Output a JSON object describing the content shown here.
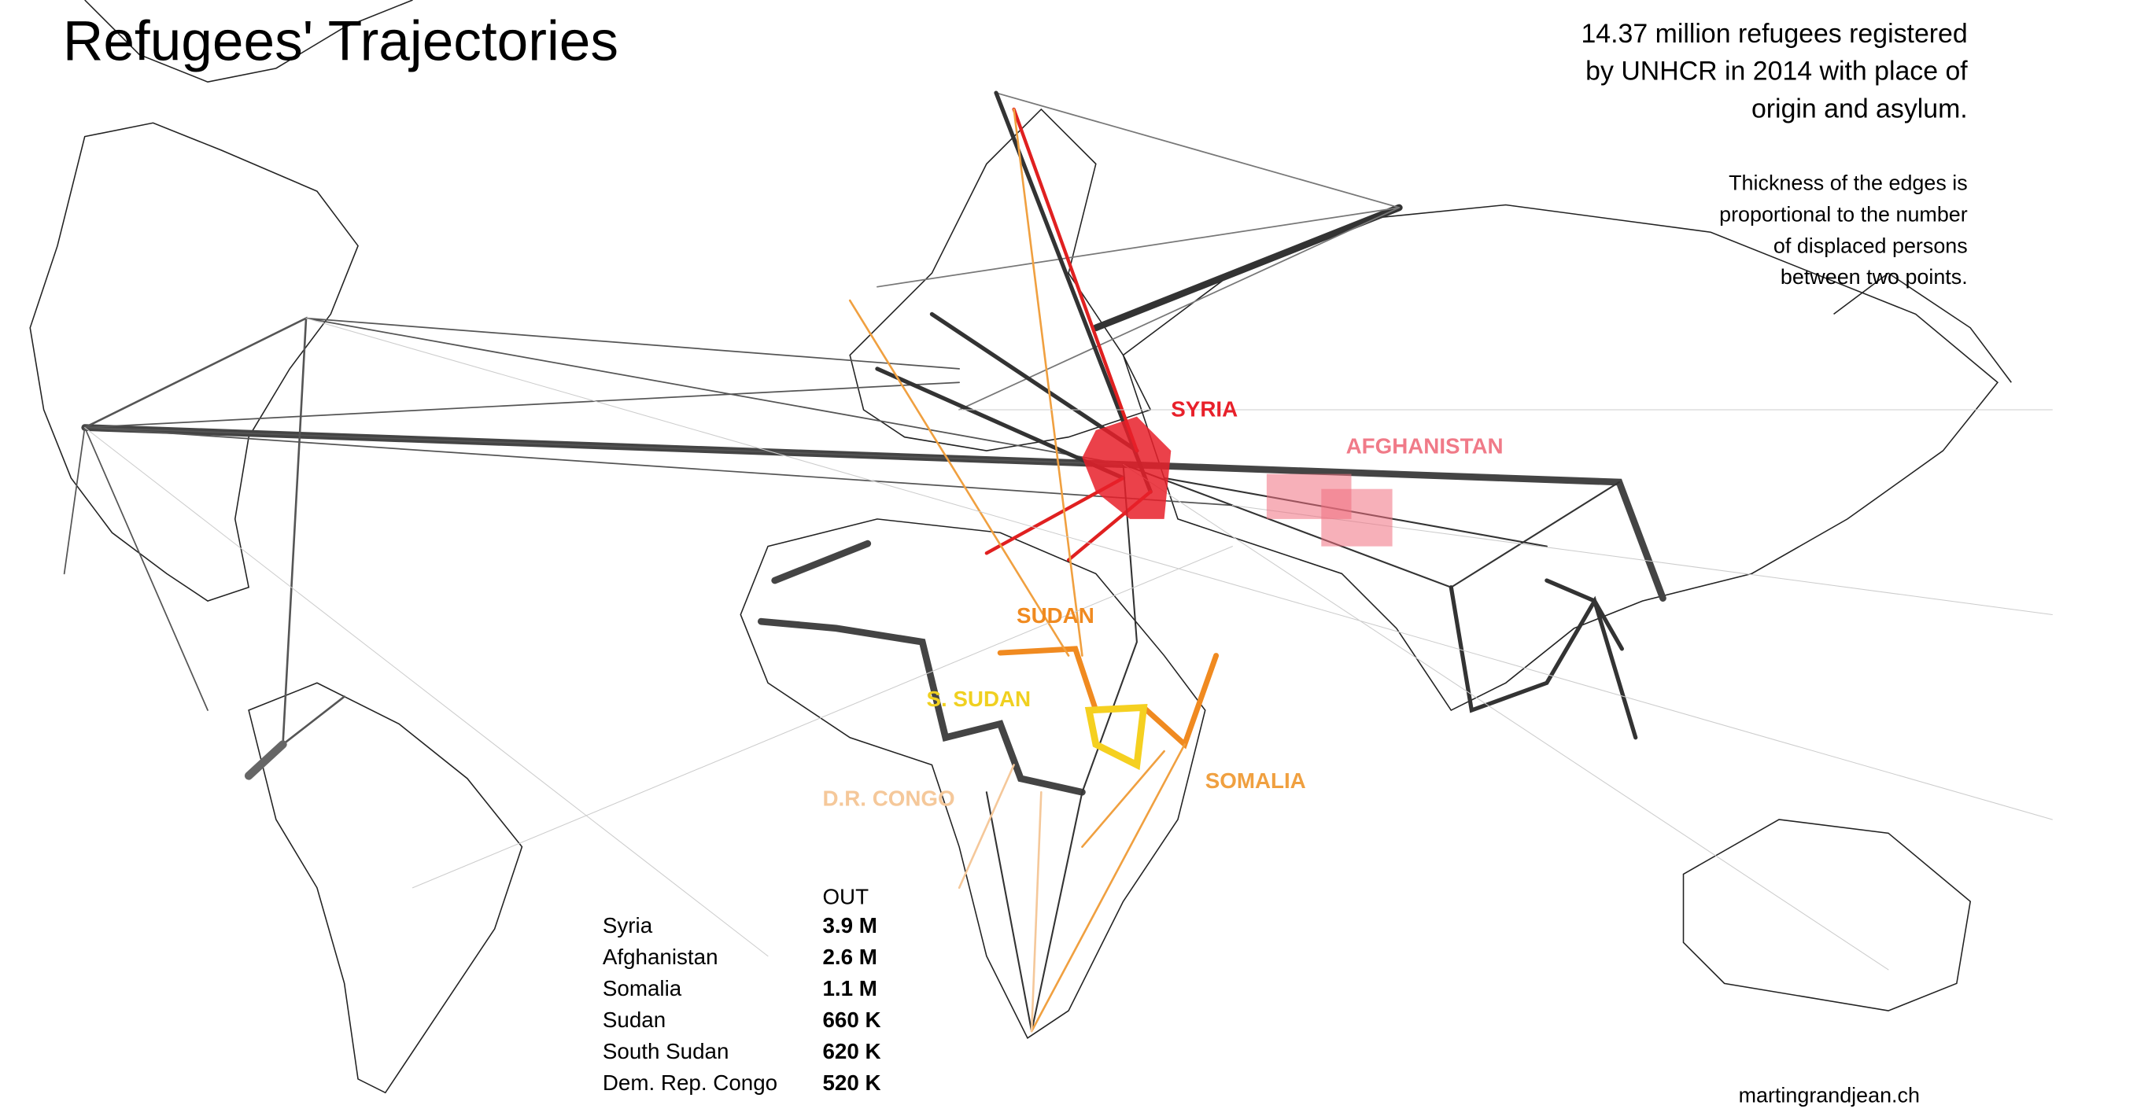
{
  "title": "Refugees' Trajectories",
  "description": [
    "14.37 million refugees registered",
    "by UNHCR in 2014 with place of",
    "origin and asylum."
  ],
  "note": [
    "Thickness of the edges is",
    "proportional to the number",
    "of displaced persons",
    "between two points."
  ],
  "labels": [
    "SYRIA",
    "AFGHANISTAN",
    "SUDAN",
    "S. SUDAN",
    "SOMALIA",
    "D.R. CONGO"
  ],
  "table": {
    "header": "OUT",
    "rows": [
      [
        "Syria",
        "3.9 M"
      ],
      [
        "Afghanistan",
        "2.6 M"
      ],
      [
        "Somalia",
        "1.1 M"
      ],
      [
        "Sudan",
        "660 K"
      ],
      [
        "South Sudan",
        "620 K"
      ],
      [
        "Dem. Rep. Congo",
        "520 K"
      ]
    ]
  },
  "credit": "martingrandjean.ch"
}
